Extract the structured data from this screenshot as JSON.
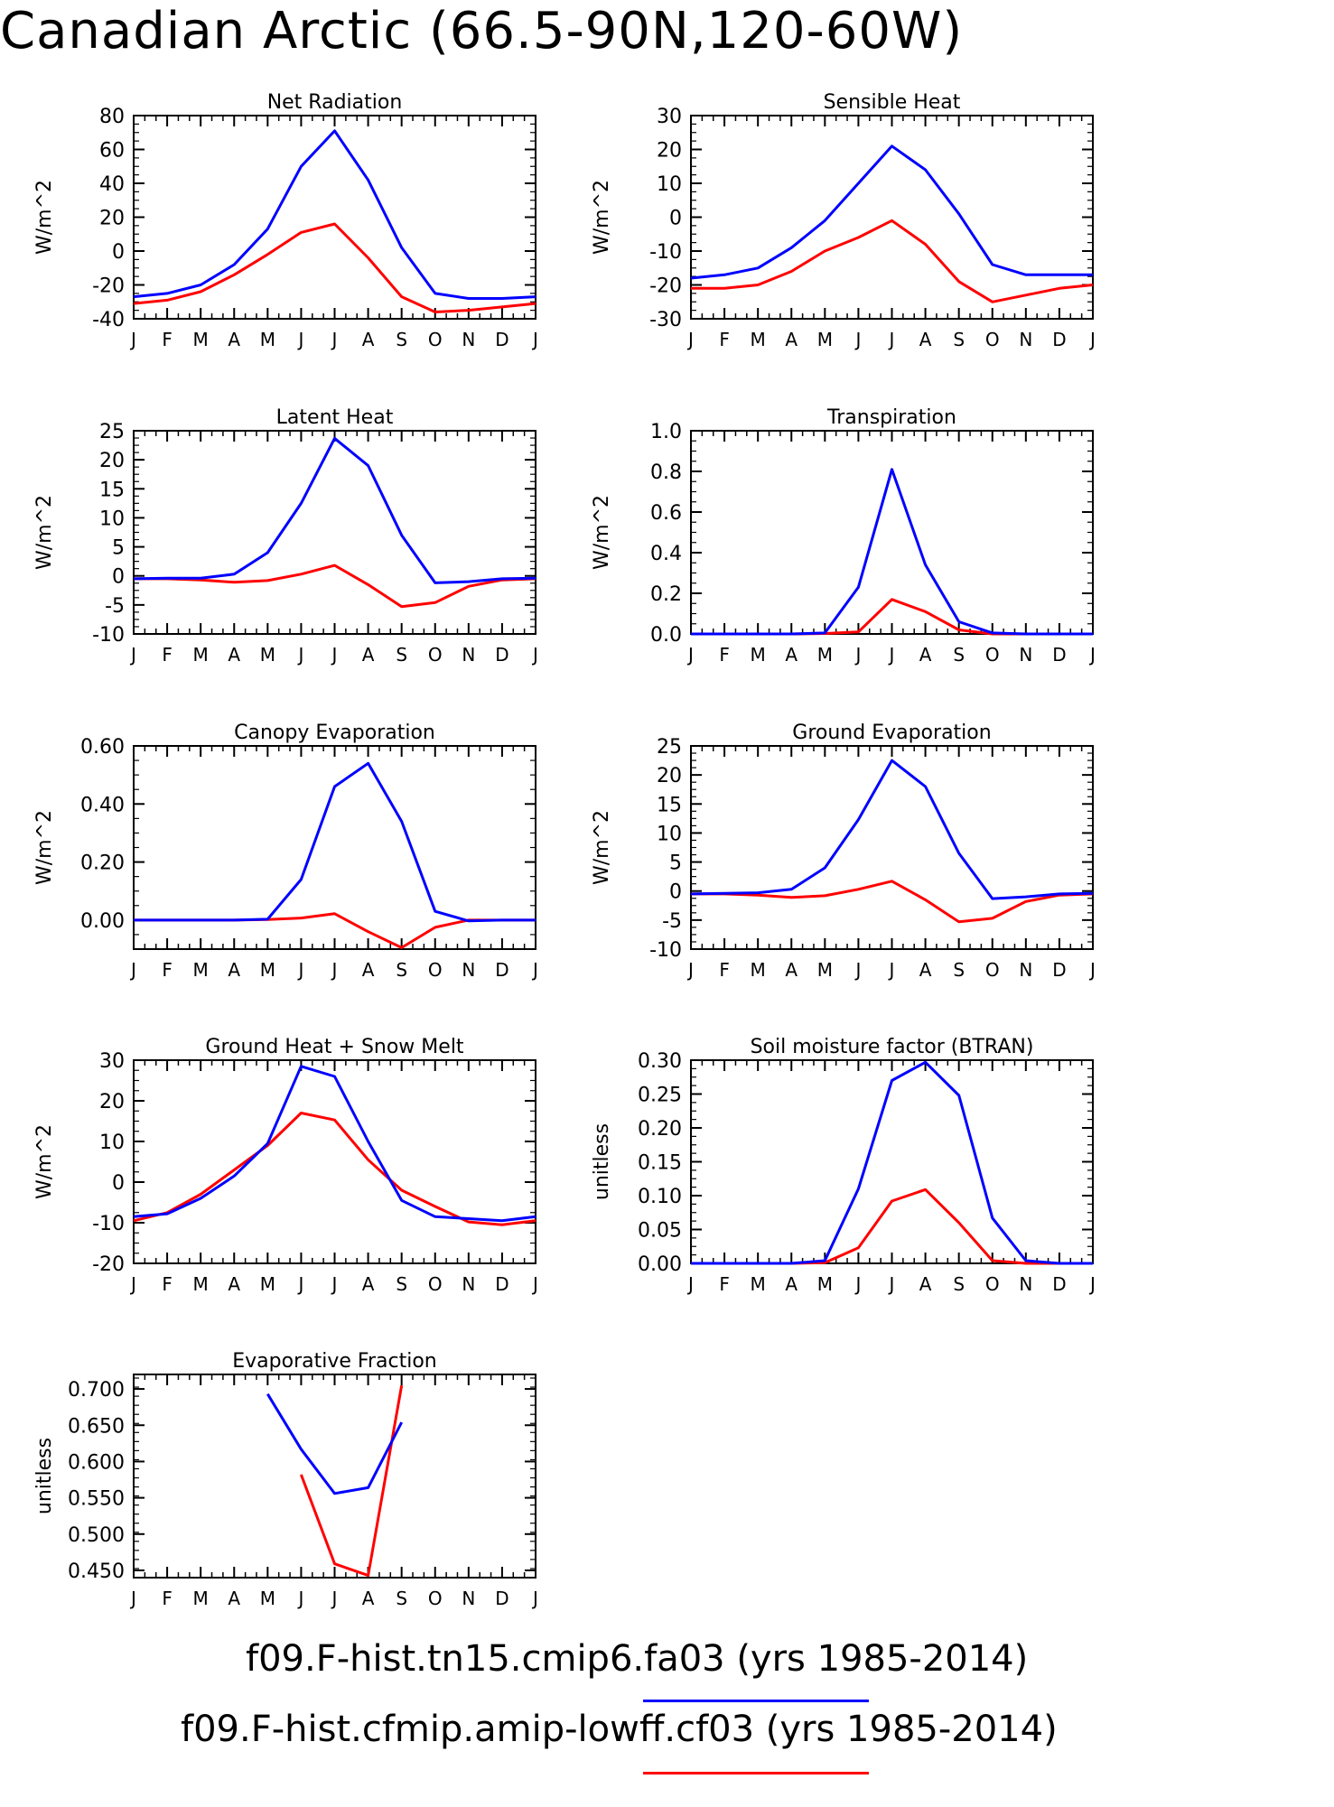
{
  "title": "Canadian Arctic (66.5-90N,120-60W)",
  "month_labels": [
    "J",
    "F",
    "M",
    "A",
    "M",
    "J",
    "J",
    "A",
    "S",
    "O",
    "N",
    "D",
    "J"
  ],
  "colors": {
    "case1": "#0000ff",
    "case2": "#ff0000"
  },
  "cases": [
    {
      "label": "f09.F-hist.tn15.cmip6.fa03 (yrs 1985-2014)",
      "color": "#0000ff"
    },
    {
      "label": "f09.F-hist.cfmip.amip-lowff.cf03 (yrs 1985-2014)",
      "color": "#ff0000"
    }
  ],
  "chart_data": [
    {
      "type": "line",
      "title": "Net Radiation",
      "ylabel": "W/m^2",
      "ylim": [
        -40,
        80
      ],
      "yticks": [
        "-40",
        "-20",
        "0",
        "20",
        "40",
        "60",
        "80"
      ],
      "x": [
        "J",
        "F",
        "M",
        "A",
        "M",
        "J",
        "J",
        "A",
        "S",
        "O",
        "N",
        "D",
        "J"
      ],
      "series": [
        {
          "values": [
            -27,
            -25,
            -20,
            -8,
            13,
            50,
            71,
            42,
            2,
            -25,
            -28,
            -28,
            -27
          ]
        },
        {
          "values": [
            -31,
            -29,
            -24,
            -14,
            -2,
            11,
            16,
            -4,
            -27,
            -36,
            -35,
            -33,
            -31
          ]
        }
      ]
    },
    {
      "type": "line",
      "title": "Sensible Heat",
      "ylabel": "W/m^2",
      "ylim": [
        -30,
        30
      ],
      "yticks": [
        "-30",
        "-20",
        "-10",
        "0",
        "10",
        "20",
        "30"
      ],
      "x": [
        "J",
        "F",
        "M",
        "A",
        "M",
        "J",
        "J",
        "A",
        "S",
        "O",
        "N",
        "D",
        "J"
      ],
      "series": [
        {
          "values": [
            -18,
            -17,
            -15,
            -9,
            -1,
            10,
            21,
            14,
            1,
            -14,
            -17,
            -17,
            -17
          ]
        },
        {
          "values": [
            -21,
            -21,
            -20,
            -16,
            -10,
            -6,
            -1,
            -8,
            -19,
            -25,
            -23,
            -21,
            -20
          ]
        }
      ]
    },
    {
      "type": "line",
      "title": "Latent Heat",
      "ylabel": "W/m^2",
      "ylim": [
        -10,
        25
      ],
      "yticks": [
        "-10",
        "-5",
        "0",
        "5",
        "10",
        "15",
        "20",
        "25"
      ],
      "x": [
        "J",
        "F",
        "M",
        "A",
        "M",
        "J",
        "J",
        "A",
        "S",
        "O",
        "N",
        "D",
        "J"
      ],
      "series": [
        {
          "values": [
            -0.5,
            -0.4,
            -0.4,
            0.3,
            4,
            12.5,
            23.7,
            19,
            7,
            -1.2,
            -1,
            -0.5,
            -0.4
          ]
        },
        {
          "values": [
            -0.5,
            -0.5,
            -0.7,
            -1.1,
            -0.8,
            0.3,
            1.8,
            -1.5,
            -5.3,
            -4.6,
            -1.8,
            -0.7,
            -0.5
          ]
        }
      ]
    },
    {
      "type": "line",
      "title": "Transpiration",
      "ylabel": "W/m^2",
      "ylim": [
        0,
        1
      ],
      "yticks": [
        "0.0",
        "0.2",
        "0.4",
        "0.6",
        "0.8",
        "1.0"
      ],
      "x": [
        "J",
        "F",
        "M",
        "A",
        "M",
        "J",
        "J",
        "A",
        "S",
        "O",
        "N",
        "D",
        "J"
      ],
      "series": [
        {
          "values": [
            0,
            0,
            0,
            0,
            0.005,
            0.23,
            0.81,
            0.34,
            0.06,
            0.005,
            0,
            0,
            0
          ]
        },
        {
          "values": [
            0,
            0,
            0,
            0,
            0.002,
            0.01,
            0.17,
            0.11,
            0.02,
            0,
            0,
            0,
            0
          ]
        }
      ]
    },
    {
      "type": "line",
      "title": "Canopy Evaporation",
      "ylabel": "W/m^2",
      "ylim": [
        -0.1,
        0.6
      ],
      "yticks": [
        "0.00",
        "0.20",
        "0.40",
        "0.60"
      ],
      "ytick_values": [
        0,
        0.2,
        0.4,
        0.6
      ],
      "x": [
        "J",
        "F",
        "M",
        "A",
        "M",
        "J",
        "J",
        "A",
        "S",
        "O",
        "N",
        "D",
        "J"
      ],
      "series": [
        {
          "values": [
            0,
            0,
            0,
            0,
            0.003,
            0.14,
            0.46,
            0.54,
            0.34,
            0.03,
            -0.003,
            0,
            0
          ]
        },
        {
          "values": [
            0,
            0,
            0,
            0,
            0.002,
            0.007,
            0.022,
            -0.04,
            -0.095,
            -0.025,
            0,
            0,
            0
          ]
        }
      ]
    },
    {
      "type": "line",
      "title": "Ground Evaporation",
      "ylabel": "W/m^2",
      "ylim": [
        -10,
        25
      ],
      "yticks": [
        "-10",
        "-5",
        "0",
        "5",
        "10",
        "15",
        "20",
        "25"
      ],
      "x": [
        "J",
        "F",
        "M",
        "A",
        "M",
        "J",
        "J",
        "A",
        "S",
        "O",
        "N",
        "D",
        "J"
      ],
      "series": [
        {
          "values": [
            -0.5,
            -0.4,
            -0.3,
            0.3,
            4,
            12.3,
            22.5,
            18,
            6.5,
            -1.3,
            -1,
            -0.5,
            -0.4
          ]
        },
        {
          "values": [
            -0.5,
            -0.5,
            -0.7,
            -1.1,
            -0.8,
            0.3,
            1.7,
            -1.5,
            -5.3,
            -4.7,
            -1.8,
            -0.7,
            -0.5
          ]
        }
      ]
    },
    {
      "type": "line",
      "title": "Ground Heat + Snow Melt",
      "ylabel": "W/m^2",
      "ylim": [
        -20,
        30
      ],
      "yticks": [
        "-20",
        "-10",
        "0",
        "10",
        "20",
        "30"
      ],
      "x": [
        "J",
        "F",
        "M",
        "A",
        "M",
        "J",
        "J",
        "A",
        "S",
        "O",
        "N",
        "D",
        "J"
      ],
      "series": [
        {
          "values": [
            -8.5,
            -7.8,
            -4,
            1.5,
            9.5,
            28.5,
            26,
            10,
            -4.5,
            -8.5,
            -9,
            -9.5,
            -8.5
          ]
        },
        {
          "values": [
            -9.5,
            -7.5,
            -3,
            3,
            9,
            17,
            15.3,
            5.5,
            -2,
            -6,
            -9.8,
            -10.5,
            -9.5
          ]
        }
      ]
    },
    {
      "type": "line",
      "title": "Soil moisture factor (BTRAN)",
      "ylabel": "unitless",
      "ylim": [
        0,
        0.3
      ],
      "yticks": [
        "0.00",
        "0.05",
        "0.10",
        "0.15",
        "0.20",
        "0.25",
        "0.30"
      ],
      "x": [
        "J",
        "F",
        "M",
        "A",
        "M",
        "J",
        "J",
        "A",
        "S",
        "O",
        "N",
        "D",
        "J"
      ],
      "series": [
        {
          "values": [
            0,
            0,
            0,
            0,
            0.004,
            0.11,
            0.27,
            0.297,
            0.248,
            0.067,
            0.004,
            0,
            0
          ]
        },
        {
          "values": [
            0,
            0,
            0,
            0,
            0.001,
            0.023,
            0.092,
            0.109,
            0.06,
            0.004,
            0,
            0,
            0
          ]
        }
      ]
    },
    {
      "type": "line",
      "title": "Evaporative Fraction",
      "ylabel": "unitless",
      "ylim": [
        0.44,
        0.72
      ],
      "yticks": [
        "0.450",
        "0.500",
        "0.550",
        "0.600",
        "0.650",
        "0.700"
      ],
      "ytick_values": [
        0.45,
        0.5,
        0.55,
        0.6,
        0.65,
        0.7
      ],
      "x": [
        "J",
        "F",
        "M",
        "A",
        "M",
        "J",
        "J",
        "A",
        "S",
        "O",
        "N",
        "D",
        "J"
      ],
      "series": [
        {
          "values": [
            null,
            null,
            null,
            null,
            0.693,
            0.617,
            0.556,
            0.564,
            0.654,
            null,
            null,
            null,
            null
          ]
        },
        {
          "values": [
            null,
            null,
            null,
            null,
            null,
            0.582,
            0.459,
            0.443,
            0.705,
            null,
            null,
            null,
            null
          ]
        }
      ]
    }
  ]
}
